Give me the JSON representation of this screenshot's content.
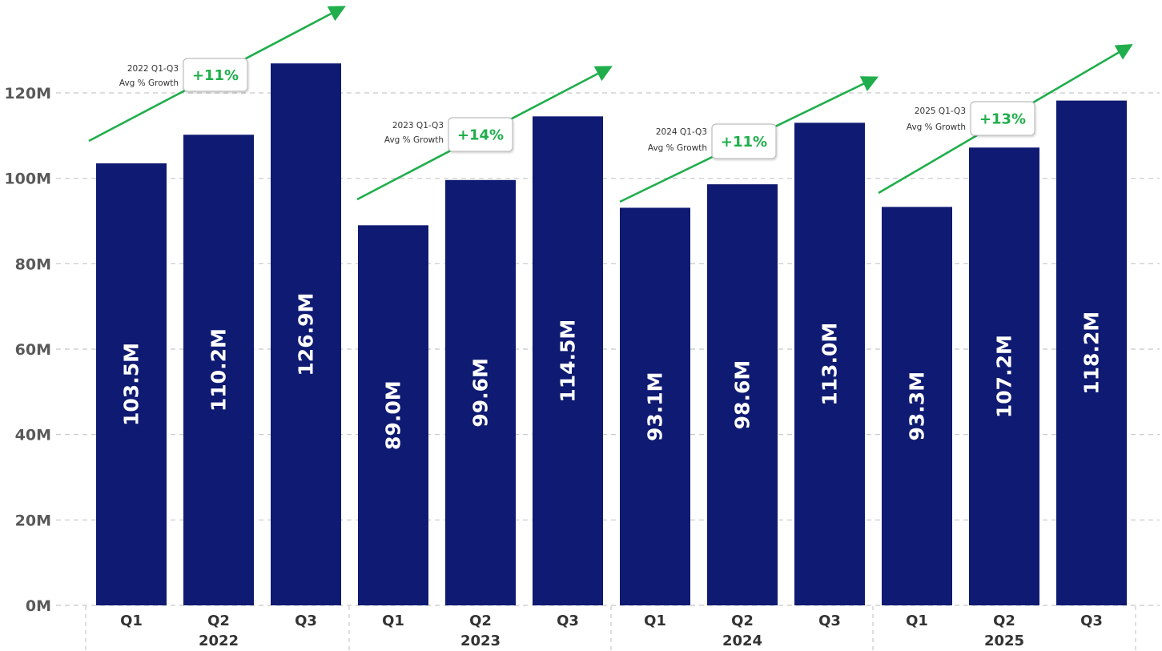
{
  "colors": {
    "bar": "#0f1a72",
    "growth": "#1fae4b",
    "grid": "#c8c8c8",
    "axis_text": "#595959"
  },
  "chart_data": {
    "type": "bar",
    "y_axis": {
      "ticks": [
        "0M",
        "20M",
        "40M",
        "60M",
        "80M",
        "100M",
        "120M"
      ],
      "ylim": [
        0,
        130
      ],
      "unit": "M",
      "grid": "dashed horizontal"
    },
    "groups": [
      {
        "year": "2022",
        "categories": [
          "Q1",
          "Q2",
          "Q3"
        ],
        "values": [
          103.5,
          110.2,
          126.9
        ],
        "labels": [
          "103.5M",
          "110.2M",
          "126.9M"
        ],
        "growth_label_line1": "2022 Q1-Q3",
        "growth_label_line2": "Avg % Growth",
        "growth_value": "+11%"
      },
      {
        "year": "2023",
        "categories": [
          "Q1",
          "Q2",
          "Q3"
        ],
        "values": [
          89.0,
          99.6,
          114.5
        ],
        "labels": [
          "89.0M",
          "99.6M",
          "114.5M"
        ],
        "growth_label_line1": "2023 Q1-Q3",
        "growth_label_line2": "Avg % Growth",
        "growth_value": "+14%"
      },
      {
        "year": "2024",
        "categories": [
          "Q1",
          "Q2",
          "Q3"
        ],
        "values": [
          93.1,
          98.6,
          113.0
        ],
        "labels": [
          "93.1M",
          "98.6M",
          "113.0M"
        ],
        "growth_label_line1": "2024 Q1-Q3",
        "growth_label_line2": "Avg % Growth",
        "growth_value": "+11%"
      },
      {
        "year": "2025",
        "categories": [
          "Q1",
          "Q2",
          "Q3"
        ],
        "values": [
          93.3,
          107.2,
          118.2
        ],
        "labels": [
          "93.3M",
          "107.2M",
          "118.2M"
        ],
        "growth_label_line1": "2025 Q1-Q3",
        "growth_label_line2": "Avg % Growth",
        "growth_value": "+13%"
      }
    ]
  }
}
